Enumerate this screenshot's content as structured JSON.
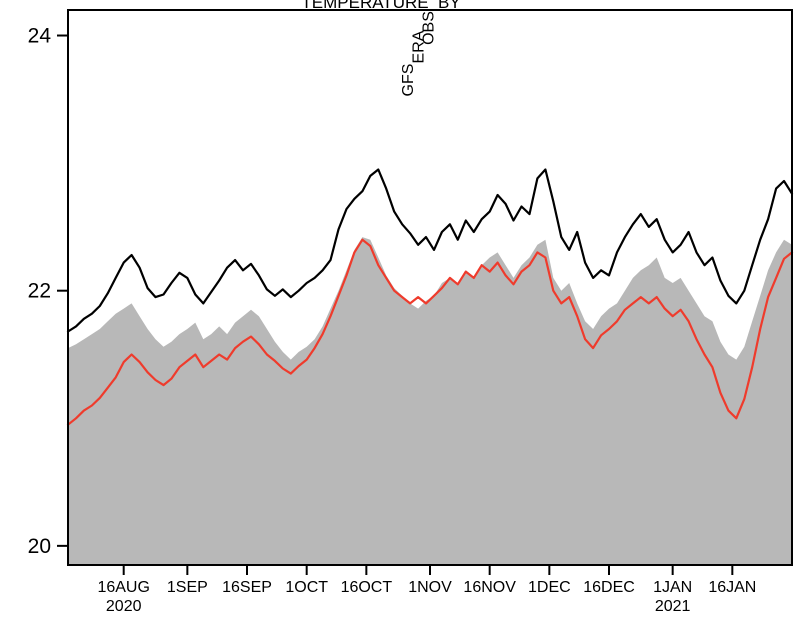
{
  "page": {
    "background": "#ffffff",
    "description_visible_only": "time-series plot, title clipped at top edge"
  },
  "chart_data": {
    "type": "line",
    "title_fragments": [
      "TEMPERATURE",
      "BY"
    ],
    "ylabel": "",
    "xlabel": "",
    "ylim": [
      19.85,
      24.2
    ],
    "yticks": [
      20,
      22,
      24
    ],
    "grid": false,
    "x_range_days": [
      0,
      182
    ],
    "x_day_start": 0,
    "x_day_step": 2,
    "x_ticks": [
      {
        "day": 14,
        "label": "16AUG"
      },
      {
        "day": 30,
        "label": "1SEP"
      },
      {
        "day": 45,
        "label": "16SEP"
      },
      {
        "day": 60,
        "label": "1OCT"
      },
      {
        "day": 75,
        "label": "16OCT"
      },
      {
        "day": 91,
        "label": "1NOV"
      },
      {
        "day": 106,
        "label": "16NOV"
      },
      {
        "day": 121,
        "label": "1DEC"
      },
      {
        "day": 136,
        "label": "16DEC"
      },
      {
        "day": 152,
        "label": "1JAN"
      },
      {
        "day": 167,
        "label": "16JAN"
      }
    ],
    "year_labels": [
      {
        "day": 14,
        "text": "2020"
      },
      {
        "day": 152,
        "text": "2021"
      }
    ],
    "legend": [
      {
        "label": "GFS",
        "color": "#ef3b2c"
      },
      {
        "label": "ERA",
        "color": "#000000"
      },
      {
        "label": "OBS",
        "color": "#b8b8b8"
      }
    ],
    "legend_position": "top-center-rotated",
    "series": [
      {
        "name": "OBS",
        "style": "area",
        "color": "#b8b8b8",
        "values": [
          21.55,
          21.58,
          21.62,
          21.66,
          21.7,
          21.76,
          21.82,
          21.86,
          21.9,
          21.8,
          21.7,
          21.62,
          21.56,
          21.6,
          21.66,
          21.7,
          21.75,
          21.62,
          21.66,
          21.72,
          21.66,
          21.75,
          21.8,
          21.85,
          21.8,
          21.7,
          21.6,
          21.52,
          21.46,
          21.52,
          21.56,
          21.62,
          21.72,
          21.86,
          22.0,
          22.16,
          22.32,
          22.42,
          22.4,
          22.26,
          22.12,
          22.02,
          21.96,
          21.9,
          21.86,
          21.92,
          21.96,
          22.06,
          22.1,
          22.06,
          22.16,
          22.1,
          22.2,
          22.26,
          22.3,
          22.2,
          22.1,
          22.2,
          22.26,
          22.36,
          22.4,
          22.1,
          22.0,
          22.06,
          21.9,
          21.76,
          21.7,
          21.8,
          21.86,
          21.9,
          22.0,
          22.1,
          22.16,
          22.2,
          22.26,
          22.1,
          22.06,
          22.1,
          22.0,
          21.9,
          21.8,
          21.76,
          21.6,
          21.5,
          21.46,
          21.56,
          21.76,
          21.96,
          22.16,
          22.3,
          22.4,
          22.36
        ]
      },
      {
        "name": "ERA",
        "style": "line",
        "color": "#000000",
        "values": [
          21.68,
          21.72,
          21.78,
          21.82,
          21.88,
          21.98,
          22.1,
          22.22,
          22.28,
          22.18,
          22.02,
          21.95,
          21.97,
          22.06,
          22.14,
          22.1,
          21.97,
          21.9,
          21.99,
          22.08,
          22.18,
          22.24,
          22.16,
          22.21,
          22.12,
          22.01,
          21.96,
          22.01,
          21.95,
          22.0,
          22.06,
          22.1,
          22.16,
          22.24,
          22.48,
          22.64,
          22.72,
          22.78,
          22.9,
          22.95,
          22.8,
          22.62,
          22.52,
          22.45,
          22.36,
          22.42,
          22.32,
          22.46,
          22.52,
          22.4,
          22.55,
          22.46,
          22.56,
          22.62,
          22.75,
          22.68,
          22.55,
          22.66,
          22.6,
          22.88,
          22.95,
          22.7,
          22.42,
          22.32,
          22.46,
          22.22,
          22.1,
          22.16,
          22.12,
          22.3,
          22.42,
          22.52,
          22.6,
          22.5,
          22.56,
          22.4,
          22.3,
          22.36,
          22.46,
          22.3,
          22.2,
          22.26,
          22.08,
          21.96,
          21.9,
          22.0,
          22.2,
          22.4,
          22.56,
          22.8,
          22.86,
          22.76
        ]
      },
      {
        "name": "GFS",
        "style": "line",
        "color": "#ef3b2c",
        "values": [
          20.95,
          21.0,
          21.06,
          21.1,
          21.16,
          21.24,
          21.32,
          21.44,
          21.5,
          21.44,
          21.36,
          21.3,
          21.26,
          21.31,
          21.4,
          21.45,
          21.5,
          21.4,
          21.45,
          21.5,
          21.46,
          21.55,
          21.6,
          21.64,
          21.58,
          21.5,
          21.45,
          21.39,
          21.35,
          21.41,
          21.46,
          21.55,
          21.66,
          21.8,
          21.96,
          22.12,
          22.3,
          22.4,
          22.35,
          22.2,
          22.1,
          22.0,
          21.95,
          21.9,
          21.95,
          21.9,
          21.96,
          22.02,
          22.1,
          22.05,
          22.15,
          22.1,
          22.2,
          22.15,
          22.22,
          22.12,
          22.05,
          22.15,
          22.2,
          22.3,
          22.26,
          22.0,
          21.9,
          21.95,
          21.8,
          21.62,
          21.55,
          21.65,
          21.7,
          21.76,
          21.85,
          21.9,
          21.95,
          21.9,
          21.95,
          21.86,
          21.8,
          21.85,
          21.76,
          21.62,
          21.5,
          21.4,
          21.2,
          21.06,
          21.0,
          21.15,
          21.4,
          21.7,
          21.95,
          22.1,
          22.25,
          22.3
        ]
      }
    ]
  }
}
